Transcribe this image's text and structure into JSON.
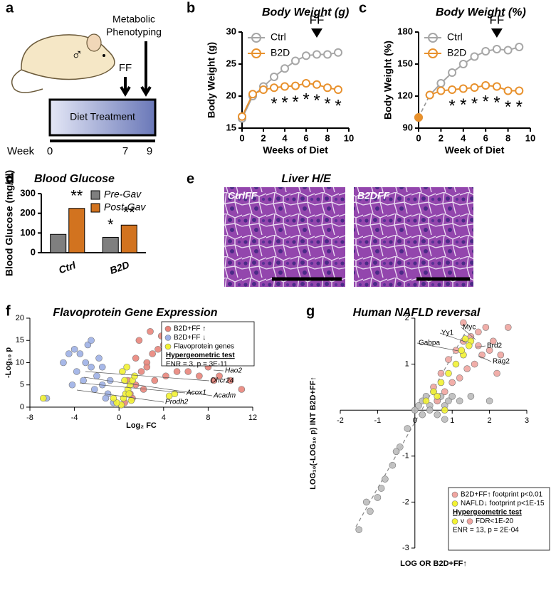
{
  "panel_labels": [
    "a",
    "b",
    "c",
    "d",
    "e",
    "f",
    "g"
  ],
  "diagram": {
    "sex": "♂",
    "phenotyping": [
      "Metabolic",
      "Phenotyping"
    ],
    "ff": "FF",
    "treatment": "Diet Treatment",
    "week_label": "Week",
    "weeks": [
      "0",
      "7",
      "9"
    ]
  },
  "images": {
    "title": "Liver H/E",
    "panels": [
      "CtrlFF",
      "B2DFF"
    ]
  },
  "chart_data": [
    {
      "type": "line",
      "title": "Body Weight (g)",
      "xlabel": "Weeks of Diet",
      "ylabel": "Body Weight (g)",
      "x": [
        0,
        1,
        2,
        3,
        4,
        5,
        6,
        7,
        8,
        9
      ],
      "series": [
        {
          "name": "Ctrl",
          "color": "#a6a6a6",
          "values": [
            16.5,
            20.0,
            21.5,
            23.0,
            24.3,
            25.5,
            26.3,
            26.5,
            26.5,
            26.8
          ]
        },
        {
          "name": "B2D",
          "color": "#e8912d",
          "values": [
            16.8,
            20.3,
            21.0,
            21.3,
            21.5,
            21.6,
            22.0,
            21.8,
            21.3,
            21.0
          ]
        }
      ],
      "significance": [
        null,
        null,
        null,
        "*",
        "*",
        "*",
        "*",
        "*",
        "*",
        "*"
      ],
      "annotation": {
        "text": "FF",
        "x": 7
      },
      "xlim": [
        0,
        10
      ],
      "xticks": [
        0,
        2,
        4,
        6,
        8,
        10
      ],
      "ylim": [
        15,
        30
      ],
      "yticks": [
        15,
        20,
        25,
        30
      ],
      "legend": "upper left"
    },
    {
      "type": "line",
      "title": "Body Weight (%)",
      "xlabel": "Week of Diet",
      "ylabel": "Body Weight (%)",
      "x": [
        0,
        1,
        2,
        3,
        4,
        5,
        6,
        7,
        8,
        9
      ],
      "series": [
        {
          "name": "Ctrl",
          "color": "#a6a6a6",
          "values": [
            100,
            121,
            132,
            142,
            150,
            157,
            162,
            164,
            163,
            166
          ]
        },
        {
          "name": "B2D",
          "color": "#e8912d",
          "values": [
            100,
            121,
            125,
            126,
            127,
            128,
            130,
            129,
            125,
            125
          ]
        }
      ],
      "significance": [
        null,
        null,
        null,
        "*",
        "*",
        "*",
        "*",
        "*",
        "*",
        "*"
      ],
      "annotation": {
        "text": "FF",
        "x": 7
      },
      "baseline_dashed": true,
      "xlim": [
        0,
        10
      ],
      "xticks": [
        0,
        2,
        4,
        6,
        8,
        10
      ],
      "ylim": [
        90,
        180
      ],
      "yticks": [
        90,
        120,
        150,
        180
      ],
      "legend": "upper left"
    },
    {
      "type": "bar",
      "title": "Blood Glucose",
      "ylabel": "Blood Glucose (mg/dl)",
      "categories": [
        "Ctrl",
        "B2D"
      ],
      "series": [
        {
          "name": "Pre-Gav",
          "color": "#7f7f7f",
          "values": [
            93,
            78
          ],
          "annotations": [
            null,
            "*"
          ]
        },
        {
          "name": "Post-Gav",
          "color": "#d2731f",
          "values": [
            225,
            140
          ],
          "annotations": [
            "**",
            "**"
          ]
        }
      ],
      "ylim": [
        0,
        300
      ],
      "yticks": [
        0,
        100,
        200,
        300
      ],
      "legend": "upper right"
    },
    {
      "type": "scatter",
      "title": "Flavoprotein Gene Expression",
      "xlabel": "Log₂ FC",
      "ylabel": "-Log₁₀ p",
      "series": [
        {
          "name": "B2D+FF ↑",
          "color": "#e9857b",
          "x": [
            0.5,
            1,
            1.5,
            2,
            2.5,
            3,
            3.5,
            4,
            4.5,
            5,
            5.5,
            6,
            6.5,
            7,
            7.5,
            8,
            9,
            10,
            11,
            1.2,
            2.2,
            3.2,
            4.2,
            5.2,
            6.2,
            7.2,
            1.8,
            2.8,
            3.8,
            0.8,
            1.5,
            2.5,
            4.8,
            6.8,
            8.5
          ],
          "values": [
            1,
            3,
            5,
            8,
            10,
            12,
            13,
            14,
            15,
            15,
            14,
            13,
            12,
            11,
            10,
            9,
            7,
            6,
            4,
            2,
            4,
            6,
            7,
            8,
            8,
            7,
            15,
            17,
            16,
            6,
            11,
            9,
            11,
            10,
            6
          ]
        },
        {
          "name": "B2D+FF ↓",
          "color": "#9db0e6",
          "x": [
            -0.5,
            -1,
            -1.5,
            -2,
            -2.5,
            -3,
            -3.5,
            -4,
            -4.5,
            -5,
            -2.2,
            -3.2,
            -1.2,
            -0.8,
            -2.8,
            -3.8,
            -1.8,
            -6.5,
            -4.2,
            -1.5,
            -2.5
          ],
          "values": [
            1,
            3,
            5,
            7,
            9,
            10,
            12,
            13,
            12,
            10,
            4,
            6,
            2,
            6,
            14,
            8,
            11,
            2,
            5,
            9,
            15
          ]
        },
        {
          "name": "Flavoprotein genes",
          "color": "#f2f232",
          "x": [
            0.2,
            0.4,
            0.6,
            0.8,
            1,
            1.2,
            1.4,
            -0.2,
            -0.5,
            0.3,
            0.7,
            0.9,
            -6.8,
            4.5,
            5,
            1.1,
            0.5
          ],
          "values": [
            0.5,
            2,
            3,
            4,
            5,
            6,
            7,
            1,
            2,
            8,
            9,
            3,
            2,
            2.5,
            3,
            1.5,
            6
          ]
        }
      ],
      "test_title": "Hypergeometric test",
      "test_result": "ENR = 3, p = 3E-11",
      "gene_labels": [
        "Hao2",
        "Dhcr24",
        "Acadm",
        "Acox1",
        "Prodh2"
      ],
      "xlim": [
        -8,
        12
      ],
      "xticks": [
        -8,
        -4,
        0,
        4,
        8,
        12
      ],
      "ylim": [
        0,
        20
      ],
      "yticks": [
        0,
        5,
        10,
        15,
        20
      ],
      "legend": "upper right"
    },
    {
      "type": "scatter",
      "axes": "origin",
      "title": "Human NAFLD reversal",
      "xlabel": "LOG OR B2D+FF↑",
      "ylabel": "LOG₁₀(-LOG₁₀ p) INT B2D+FF↑",
      "series": [
        {
          "color": "#bdbdbd",
          "x": [
            -1.5,
            -1.2,
            -1,
            -0.8,
            -0.6,
            -0.4,
            -0.2,
            0,
            0.1,
            0.2,
            0.3,
            0.4,
            0.5,
            0.6,
            0.7,
            0.8,
            0.9,
            1,
            1.2,
            -0.9,
            -0.5,
            0.2,
            0.6,
            1.5,
            2,
            -1.3,
            0.4,
            0.8
          ],
          "values": [
            -2.6,
            -2.2,
            -1.9,
            -1.5,
            -1.2,
            -0.8,
            -0.4,
            0,
            0.1,
            0.2,
            0.3,
            0.1,
            0.4,
            0.2,
            0.3,
            0.1,
            0.2,
            0.3,
            0.2,
            -1.7,
            -0.9,
            -0.1,
            -0.1,
            0.3,
            0.2,
            -2.0,
            0.0,
            -0.2
          ]
        },
        {
          "name": "B2D+FF↑ footprint p<0.01",
          "color": "#f0a5a0",
          "x": [
            0.5,
            0.7,
            0.9,
            1.1,
            1.3,
            1.5,
            1.7,
            1.9,
            2.1,
            2.3,
            2.5,
            0.8,
            1.2,
            1.6,
            2,
            1,
            1.4,
            1.8,
            2.2,
            0.6,
            1.3,
            1.7
          ],
          "values": [
            0.5,
            0.8,
            1.1,
            1.3,
            1.5,
            1.6,
            1.7,
            1.8,
            1.5,
            1.2,
            1.8,
            0.4,
            0.7,
            1.0,
            1.3,
            0.6,
            0.9,
            1.2,
            0.8,
            0.2,
            1.9,
            1.4
          ]
        },
        {
          "name": "NAFLD↓ footprint p<1E-15",
          "color": "#f2f232",
          "x": [
            0.3,
            0.5,
            0.7,
            0.9,
            1.1,
            1.3,
            1.5,
            1.35,
            1.25,
            1.45,
            0.6,
            0.8
          ],
          "values": [
            0.2,
            0.4,
            0.6,
            0.8,
            1.0,
            1.2,
            1.5,
            1.55,
            1.3,
            1.4,
            0.3,
            0.0
          ]
        }
      ],
      "test_title": "Hypergeometric test",
      "test_items": [
        "v",
        "FDR<1E-20"
      ],
      "test_result": "ENR = 13, p = 2E-04",
      "gene_labels": [
        "Myc",
        "Yy1",
        "Gabpa",
        "Brd2",
        "Rag2"
      ],
      "xlim": [
        -2,
        3
      ],
      "xticks": [
        -2,
        -1,
        0,
        1,
        2,
        3
      ],
      "ylim": [
        -3,
        2
      ],
      "yticks": [
        -3,
        -2,
        -1,
        1,
        2
      ],
      "legend": "lower right"
    }
  ]
}
